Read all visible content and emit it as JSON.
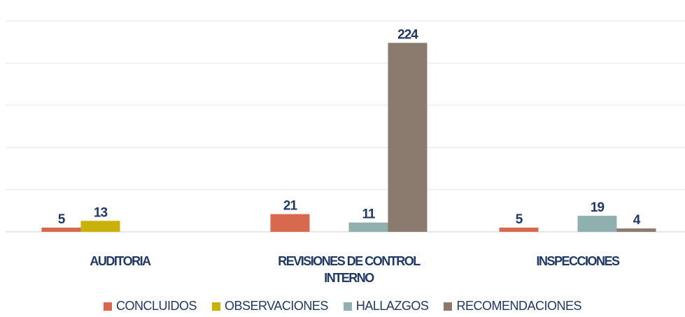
{
  "chart_data": {
    "type": "bar",
    "categories": [
      "AUDITORIA",
      "REVISIONES DE CONTROL INTERNO",
      "INSPECCIONES"
    ],
    "series": [
      {
        "name": "CONCLUIDOS",
        "color": "#d9694e",
        "values": [
          5,
          21,
          5
        ]
      },
      {
        "name": "OBSERVACIONES",
        "color": "#c9b10a",
        "values": [
          13,
          null,
          null
        ]
      },
      {
        "name": "HALLAZGOS",
        "color": "#8fb0ae",
        "values": [
          null,
          11,
          19
        ]
      },
      {
        "name": "RECOMENDACIONES",
        "color": "#8b7b6e",
        "values": [
          null,
          224,
          4
        ]
      }
    ],
    "ylim": [
      0,
      250
    ],
    "yticks": [
      0,
      50,
      100,
      150,
      200,
      250
    ],
    "grid": true,
    "legend": "bottom"
  }
}
